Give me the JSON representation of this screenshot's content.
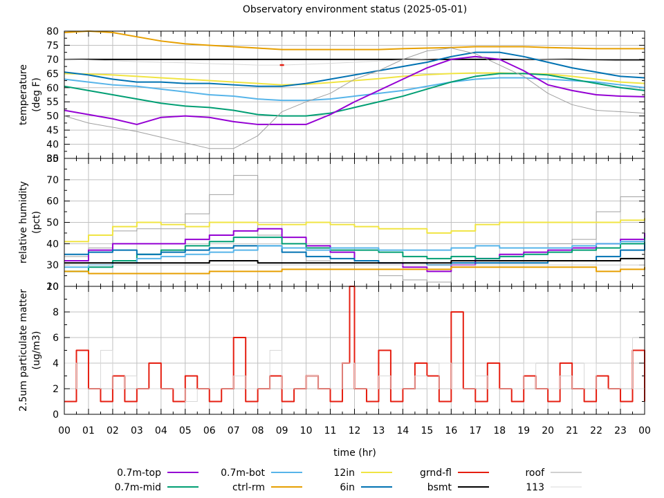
{
  "chart_data": {
    "type": "line",
    "title": "Observatory environment status (2025-05-01)",
    "xlabel": "time (hr)",
    "x_tick_labels": [
      "00",
      "01",
      "02",
      "03",
      "04",
      "05",
      "06",
      "07",
      "08",
      "09",
      "10",
      "11",
      "12",
      "13",
      "14",
      "15",
      "16",
      "17",
      "18",
      "19",
      "20",
      "21",
      "22",
      "23",
      "00"
    ],
    "xlim": [
      0,
      24
    ],
    "grid": true,
    "legend_position": "bottom",
    "legend": [
      {
        "name": "0.7m-top",
        "color": "#9400d3"
      },
      {
        "name": "0.7m-mid",
        "color": "#009e73"
      },
      {
        "name": "0.7m-bot",
        "color": "#56b4e9"
      },
      {
        "name": "ctrl-rm",
        "color": "#e69f00"
      },
      {
        "name": "12in",
        "color": "#f0e442"
      },
      {
        "name": "6in",
        "color": "#0072b2"
      },
      {
        "name": "grnd-fl",
        "color": "#e51e10"
      },
      {
        "name": "bsmt",
        "color": "#000000"
      },
      {
        "name": "roof",
        "color": "#a0a0a0"
      },
      {
        "name": "113",
        "color": "#d8d8d8"
      }
    ],
    "panels": [
      {
        "id": "temperature",
        "ylabel": [
          "temperature",
          "(deg F)"
        ],
        "ylim": [
          35,
          80
        ],
        "y_tick_labels": [
          "80",
          "75",
          "70",
          "65",
          "60",
          "55",
          "50",
          "45",
          "40",
          "35"
        ],
        "y_ticks": [
          80,
          75,
          70,
          65,
          60,
          55,
          50,
          45,
          40,
          35
        ],
        "x": [
          0,
          1,
          2,
          3,
          4,
          5,
          6,
          7,
          8,
          9,
          10,
          11,
          12,
          13,
          14,
          15,
          16,
          17,
          18,
          19,
          20,
          21,
          22,
          23,
          24
        ],
        "series": [
          {
            "name": "ctrl-rm",
            "values": [
              79.5,
              80,
              79.5,
              78,
              76.5,
              75.5,
              75,
              74.5,
              74,
              73.5,
              73.5,
              73.5,
              73.5,
              73.5,
              73.8,
              74,
              74.2,
              74.5,
              74.5,
              74.5,
              74.2,
              74,
              73.8,
              73.8,
              73.8
            ]
          },
          {
            "name": "bsmt",
            "values": [
              70,
              70,
              70,
              70,
              70,
              70,
              70,
              70,
              70,
              70,
              70,
              70,
              70,
              70,
              70,
              70,
              70,
              70,
              70,
              70,
              70,
              70,
              69.8,
              69.8,
              69.8
            ]
          },
          {
            "name": "113",
            "values": [
              70,
              69.8,
              69.5,
              69.2,
              69,
              68.8,
              68.5,
              68.3,
              68,
              68,
              68.3,
              68.6,
              69,
              69.4,
              69.8,
              70.2,
              70.5,
              70.5,
              70.4,
              70.2,
              70,
              69.8,
              69.6,
              69.5,
              69.5
            ]
          },
          {
            "name": "12in",
            "values": [
              65,
              64.8,
              64.5,
              64,
              63.5,
              63,
              62.5,
              62,
              61.5,
              61,
              61.2,
              61.8,
              62.5,
              63.2,
              64,
              64.6,
              65,
              65.2,
              65.2,
              65,
              64.8,
              64,
              63,
              62,
              61.5
            ]
          },
          {
            "name": "6in",
            "values": [
              65.5,
              64.5,
              63,
              62,
              62,
              61.5,
              61.5,
              61,
              60.5,
              60.5,
              61.5,
              63,
              64.5,
              66,
              67.5,
              69,
              71,
              72.5,
              72.5,
              71,
              69,
              67,
              65.5,
              64,
              63.5
            ]
          },
          {
            "name": "0.7m-bot",
            "values": [
              63,
              62,
              61,
              60.5,
              59.5,
              58.5,
              57.5,
              57,
              56,
              55.5,
              55.5,
              56,
              57,
              58,
              59,
              60.5,
              62,
              63,
              63.5,
              63.5,
              63,
              62.5,
              62,
              61,
              60
            ]
          },
          {
            "name": "0.7m-mid",
            "values": [
              60.5,
              59,
              57.5,
              56,
              54.5,
              53.5,
              53,
              52,
              50.5,
              50,
              50,
              51,
              53,
              55,
              57,
              59.5,
              62,
              64,
              65,
              65,
              64.5,
              63,
              61.5,
              60,
              59
            ]
          },
          {
            "name": "0.7m-top",
            "values": [
              52,
              50.5,
              49,
              47,
              49.5,
              50,
              49.5,
              48,
              47,
              47,
              47,
              50.5,
              55,
              59,
              63,
              67,
              70,
              71,
              70,
              66,
              61,
              59,
              57.5,
              57,
              56.8
            ]
          },
          {
            "name": "roof",
            "values": [
              50,
              47.5,
              46,
              44.5,
              42.5,
              40.5,
              38.5,
              38.5,
              43,
              51.5,
              55,
              58,
              63,
              66,
              70,
              73,
              74,
              72,
              68,
              64,
              58,
              54,
              52,
              51.5,
              51
            ]
          },
          {
            "name": "grnd-fl",
            "values": [
              null,
              null,
              null,
              null,
              null,
              null,
              null,
              null,
              null,
              68,
              null,
              null,
              null,
              null,
              null,
              null,
              null,
              null,
              null,
              null,
              null,
              null,
              null,
              null,
              null
            ]
          }
        ]
      },
      {
        "id": "humidity",
        "ylabel": [
          "relative humidity",
          "(pct)"
        ],
        "ylim": [
          20,
          80
        ],
        "y_tick_labels": [
          "80",
          "70",
          "60",
          "50",
          "40",
          "30",
          "20"
        ],
        "y_ticks": [
          80,
          70,
          60,
          50,
          40,
          30,
          20
        ],
        "x": [
          0,
          1,
          2,
          3,
          4,
          5,
          6,
          7,
          8,
          9,
          10,
          11,
          12,
          13,
          14,
          15,
          16,
          17,
          18,
          19,
          20,
          21,
          22,
          23,
          24
        ],
        "series": [
          {
            "name": "roof",
            "values": [
              34,
              38,
              46,
              47,
              47,
              54,
              63,
              72,
              44,
              38,
              32,
              31,
              28,
              25,
              23,
              22,
              30,
              33,
              35,
              38,
              40,
              42,
              55,
              62,
              69
            ]
          },
          {
            "name": "12in",
            "values": [
              41,
              44,
              48,
              50,
              49,
              48,
              50,
              50,
              49,
              49,
              50,
              49,
              48,
              47,
              47,
              45,
              46,
              49,
              50,
              50,
              50,
              50,
              50,
              51,
              52
            ]
          },
          {
            "name": "0.7m-top",
            "values": [
              32,
              37,
              40,
              40,
              40,
              42,
              44,
              46,
              47,
              43,
              39,
              36,
              32,
              31,
              29,
              27,
              30,
              33,
              35,
              36,
              37,
              38,
              40,
              42,
              45
            ]
          },
          {
            "name": "0.7m-mid",
            "values": [
              27,
              29,
              32,
              35,
              37,
              39,
              41,
              43,
              43,
              40,
              38,
              37,
              37,
              36,
              34,
              33,
              34,
              33,
              34,
              35,
              36,
              37,
              38,
              40,
              43
            ]
          },
          {
            "name": "6in",
            "values": [
              35,
              36,
              37,
              35,
              36,
              37,
              38,
              39,
              39,
              36,
              34,
              33,
              32,
              31,
              31,
              30,
              31,
              31,
              31,
              31,
              32,
              32,
              34,
              37,
              40
            ]
          },
          {
            "name": "0.7m-bot",
            "values": [
              29,
              30,
              31,
              33,
              34,
              35,
              36,
              37,
              39,
              38,
              37,
              38,
              38,
              37,
              37,
              37,
              38,
              39,
              38,
              38,
              38,
              39,
              40,
              41,
              42
            ]
          },
          {
            "name": "bsmt",
            "values": [
              31,
              31,
              31,
              31,
              31,
              31,
              32,
              32,
              31,
              31,
              31,
              31,
              31,
              31,
              31,
              31,
              32,
              32,
              32,
              32,
              32,
              32,
              32,
              33,
              33
            ]
          },
          {
            "name": "113",
            "values": [
              30,
              30,
              30,
              30,
              30,
              30,
              30,
              30,
              30,
              30,
              30,
              30,
              30,
              30,
              30,
              30,
              30,
              30,
              30,
              30,
              30,
              30,
              30,
              30,
              30
            ]
          },
          {
            "name": "ctrl-rm",
            "values": [
              27,
              26,
              26,
              26,
              26,
              26,
              27,
              27,
              27,
              28,
              28,
              28,
              28,
              28,
              28,
              28,
              29,
              29,
              29,
              29,
              29,
              29,
              27,
              28,
              29
            ]
          }
        ]
      },
      {
        "id": "particulate",
        "ylabel": [
          "2.5um particulate matter",
          "(ug/m3)"
        ],
        "ylim": [
          0,
          10
        ],
        "y_tick_labels": [
          "10",
          "8",
          "6",
          "4",
          "2",
          "0"
        ],
        "y_ticks": [
          10,
          8,
          6,
          4,
          2,
          0
        ],
        "x": [
          0,
          0.5,
          1,
          1.5,
          2,
          2.5,
          3,
          3.5,
          4,
          4.5,
          5,
          5.5,
          6,
          6.5,
          7,
          7.5,
          8,
          8.5,
          9,
          9.5,
          10,
          10.5,
          11,
          11.5,
          11.8,
          12,
          12.5,
          13,
          13.5,
          14,
          14.5,
          15,
          15.5,
          16,
          16.5,
          17,
          17.5,
          18,
          18.5,
          19,
          19.5,
          20,
          20.5,
          21,
          21.5,
          22,
          22.5,
          23,
          23.5,
          24
        ],
        "series": [
          {
            "name": "grnd-fl",
            "values": [
              1,
              5,
              2,
              1,
              3,
              1,
              2,
              4,
              2,
              1,
              3,
              2,
              1,
              2,
              6,
              1,
              2,
              3,
              1,
              2,
              3,
              2,
              1,
              4,
              10,
              2,
              1,
              5,
              1,
              2,
              4,
              3,
              1,
              8,
              2,
              1,
              4,
              2,
              1,
              3,
              2,
              1,
              4,
              2,
              1,
              3,
              2,
              1,
              5,
              1
            ]
          },
          {
            "name": "113",
            "values": [
              4,
              2,
              2,
              5,
              2,
              3,
              2,
              2,
              2,
              2,
              1,
              2,
              2,
              2,
              3,
              2,
              2,
              5,
              2,
              2,
              3,
              2,
              2,
              4,
              4,
              2,
              2,
              3,
              2,
              2,
              3,
              2,
              4,
              2,
              2,
              3,
              2,
              2,
              2,
              4,
              2,
              2,
              3,
              2,
              4,
              2,
              2,
              6,
              2,
              2
            ]
          }
        ]
      }
    ]
  }
}
